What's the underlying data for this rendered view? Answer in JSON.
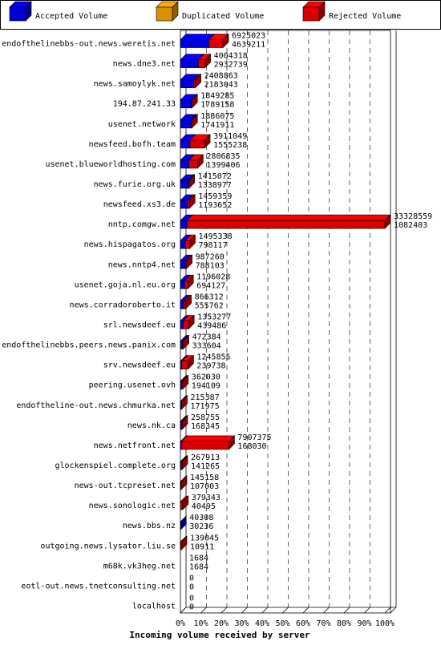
{
  "chart_data": {
    "type": "bar",
    "orientation": "horizontal",
    "stacked": true,
    "title": "",
    "xlabel": "Incoming volume received by server",
    "ylabel": "",
    "xlim": [
      0,
      100
    ],
    "grid": true,
    "legend_position": "top",
    "series": [
      {
        "name": "Accepted Volume",
        "color": "#0000ff"
      },
      {
        "name": "Duplicated Volume",
        "color": "#ffaa00"
      },
      {
        "name": "Rejected Volume",
        "color": "#ff0000"
      }
    ],
    "x_ticks": [
      "0%",
      "10%",
      "20%",
      "30%",
      "40%",
      "50%",
      "60%",
      "70%",
      "80%",
      "90%",
      "100%"
    ],
    "servers": [
      {
        "name": "endofthelinebbs-out.news.weretis.net",
        "total": "6925023",
        "accepted": "4639211",
        "duplicated_pct": 0,
        "accepted_pct": 13.9,
        "rejected_pct": 6.9
      },
      {
        "name": "news.dne3.net",
        "total": "4004318",
        "accepted": "2932739",
        "duplicated_pct": 0,
        "accepted_pct": 8.8,
        "rejected_pct": 3.2
      },
      {
        "name": "news.samoylyk.net",
        "total": "2408863",
        "accepted": "2183043",
        "duplicated_pct": 0,
        "accepted_pct": 6.6,
        "rejected_pct": 0.7
      },
      {
        "name": "194.87.241.33",
        "total": "1849285",
        "accepted": "1789158",
        "duplicated_pct": 0,
        "accepted_pct": 5.4,
        "rejected_pct": 0.2
      },
      {
        "name": "usenet.network",
        "total": "1886075",
        "accepted": "1741911",
        "duplicated_pct": 0,
        "accepted_pct": 5.2,
        "rejected_pct": 0.4
      },
      {
        "name": "newsfeed.bofh.team",
        "total": "3911049",
        "accepted": "1555238",
        "duplicated_pct": 0,
        "accepted_pct": 4.7,
        "rejected_pct": 7.1
      },
      {
        "name": "usenet.blueworldhosting.com",
        "total": "2806835",
        "accepted": "1399406",
        "duplicated_pct": 0,
        "accepted_pct": 4.2,
        "rejected_pct": 4.2
      },
      {
        "name": "news.furie.org.uk",
        "total": "1415072",
        "accepted": "1338977",
        "duplicated_pct": 0,
        "accepted_pct": 4.0,
        "rejected_pct": 0.2
      },
      {
        "name": "newsfeed.xs3.de",
        "total": "1459359",
        "accepted": "1193652",
        "duplicated_pct": 0,
        "accepted_pct": 3.6,
        "rejected_pct": 0.8
      },
      {
        "name": "nntp.comgw.net",
        "total": "33328559",
        "accepted": "1082403",
        "duplicated_pct": 0,
        "accepted_pct": 3.2,
        "rejected_pct": 96.8
      },
      {
        "name": "news.hispagatos.org",
        "total": "1495338",
        "accepted": "798117",
        "duplicated_pct": 0,
        "accepted_pct": 2.4,
        "rejected_pct": 2.1
      },
      {
        "name": "news.nntp4.net",
        "total": "987260",
        "accepted": "788103",
        "duplicated_pct": 0,
        "accepted_pct": 2.4,
        "rejected_pct": 0.6
      },
      {
        "name": "usenet.goja.nl.eu.org",
        "total": "1196028",
        "accepted": "694127",
        "duplicated_pct": 0,
        "accepted_pct": 2.1,
        "rejected_pct": 1.5
      },
      {
        "name": "news.corradoroberto.it",
        "total": "866312",
        "accepted": "555762",
        "duplicated_pct": 0,
        "accepted_pct": 1.7,
        "rejected_pct": 0.9
      },
      {
        "name": "srl.newsdeef.eu",
        "total": "1353277",
        "accepted": "439486",
        "duplicated_pct": 0,
        "accepted_pct": 1.3,
        "rejected_pct": 2.7
      },
      {
        "name": "endofthelinebbs.peers.news.panix.com",
        "total": "472384",
        "accepted": "333604",
        "duplicated_pct": 0,
        "accepted_pct": 1.0,
        "rejected_pct": 0.4
      },
      {
        "name": "srv.newsdeef.eu",
        "total": "1245855",
        "accepted": "239738",
        "duplicated_pct": 0,
        "accepted_pct": 0.7,
        "rejected_pct": 3.0
      },
      {
        "name": "peering.usenet.ovh",
        "total": "362030",
        "accepted": "194109",
        "duplicated_pct": 0,
        "accepted_pct": 0.6,
        "rejected_pct": 0.5
      },
      {
        "name": "endoftheline-out.news.chmurka.net",
        "total": "215387",
        "accepted": "171975",
        "duplicated_pct": 0,
        "accepted_pct": 0.5,
        "rejected_pct": 0.1
      },
      {
        "name": "news.nk.ca",
        "total": "258755",
        "accepted": "168345",
        "duplicated_pct": 0,
        "accepted_pct": 0.5,
        "rejected_pct": 0.3
      },
      {
        "name": "news.netfront.net",
        "total": "7907375",
        "accepted": "168030",
        "duplicated_pct": 0,
        "accepted_pct": 0.5,
        "rejected_pct": 23.2
      },
      {
        "name": "glockenspiel.complete.org",
        "total": "267913",
        "accepted": "141265",
        "duplicated_pct": 0,
        "accepted_pct": 0.4,
        "rejected_pct": 0.4
      },
      {
        "name": "news-out.tcpreset.net",
        "total": "145158",
        "accepted": "107003",
        "duplicated_pct": 0,
        "accepted_pct": 0.3,
        "rejected_pct": 0.1
      },
      {
        "name": "news.sonologic.net",
        "total": "379343",
        "accepted": "40495",
        "duplicated_pct": 0,
        "accepted_pct": 0.1,
        "rejected_pct": 1.0
      },
      {
        "name": "news.bbs.nz",
        "total": "40308",
        "accepted": "30236",
        "duplicated_pct": 0,
        "accepted_pct": 0.1,
        "rejected_pct": 0.0
      },
      {
        "name": "outgoing.news.lysator.liu.se",
        "total": "139045",
        "accepted": "10911",
        "duplicated_pct": 0,
        "accepted_pct": 0.0,
        "rejected_pct": 0.4
      },
      {
        "name": "m68k.vk3heg.net",
        "total": "1684",
        "accepted": "1684",
        "duplicated_pct": 0,
        "accepted_pct": 0.0,
        "rejected_pct": 0.0
      },
      {
        "name": "eotl-out.news.tnetconsulting.net",
        "total": "0",
        "accepted": "0",
        "duplicated_pct": 0,
        "accepted_pct": 0,
        "rejected_pct": 0
      },
      {
        "name": "localhost",
        "total": "0",
        "accepted": "0",
        "duplicated_pct": 0,
        "accepted_pct": 0,
        "rejected_pct": 0
      }
    ]
  }
}
